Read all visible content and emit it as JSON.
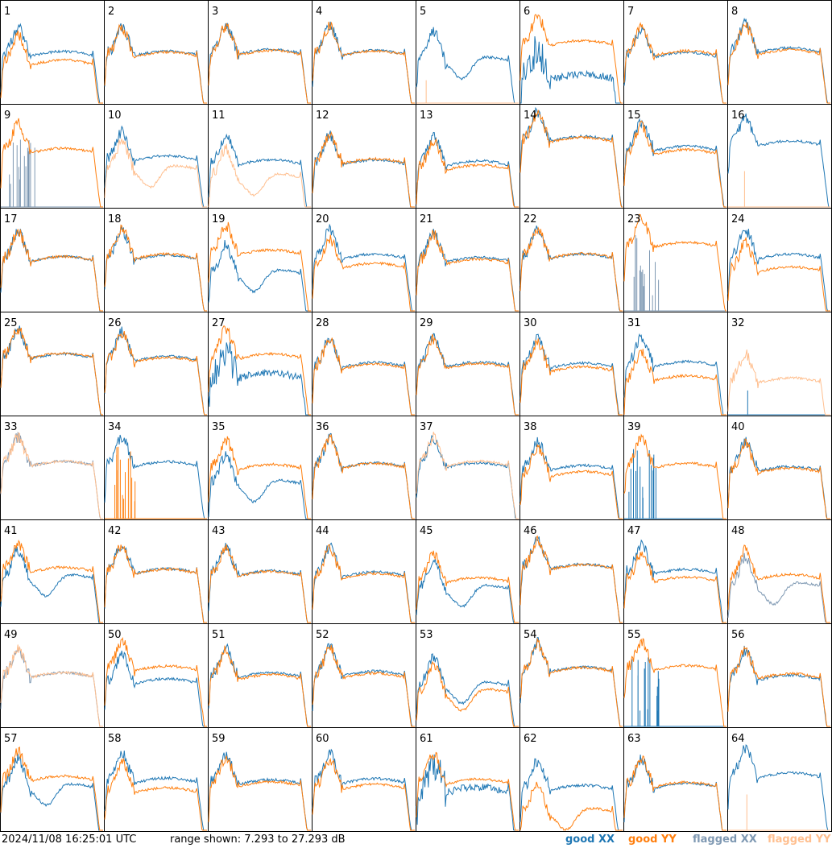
{
  "footer": {
    "timestamp": "2024/11/08 16:25:01 UTC",
    "range_text": "range shown: 7.293 to 27.293 dB"
  },
  "colors": {
    "good_xx": "#1f77b4",
    "good_yy": "#ff7f0e",
    "flagged_xx": "#7f99b3",
    "flagged_yy": "#ffbf8f"
  },
  "chart_data": {
    "type": "line",
    "layout": "8x8 small multiples, one spectrum per tile",
    "ylim": [
      7.293,
      27.293
    ],
    "yunit": "dB",
    "legend": {
      "placement": "bottom-right",
      "entries": [
        {
          "prefix": "good",
          "pol": "XX",
          "color_key": "good_xx"
        },
        {
          "prefix": "good",
          "pol": "YY",
          "color_key": "good_yy"
        },
        {
          "prefix": "flagged",
          "pol": "XX",
          "color_key": "flagged_xx"
        },
        {
          "prefix": "flagged",
          "pol": "YY",
          "color_key": "flagged_yy"
        }
      ]
    },
    "tiles": [
      {
        "label": "1",
        "xx": "good",
        "yy": "good",
        "xx_mid": 16.5,
        "yy_mid": 14.8,
        "xx_shape": "normal",
        "yy_shape": "normal"
      },
      {
        "label": "2",
        "xx": "good",
        "yy": "good",
        "xx_mid": 16.6,
        "yy_mid": 16.4,
        "xx_shape": "normal",
        "yy_shape": "normal"
      },
      {
        "label": "3",
        "xx": "good",
        "yy": "good",
        "xx_mid": 16.9,
        "yy_mid": 16.7,
        "xx_shape": "normal",
        "yy_shape": "normal"
      },
      {
        "label": "4",
        "xx": "good",
        "yy": "good",
        "xx_mid": 16.7,
        "yy_mid": 16.6,
        "xx_shape": "normal",
        "yy_shape": "normal"
      },
      {
        "label": "5",
        "xx": "good",
        "yy": "flagged",
        "xx_mid": 15.5,
        "yy_mid": 7.3,
        "xx_shape": "dip",
        "yy_shape": "flat"
      },
      {
        "label": "6",
        "xx": "good",
        "yy": "good",
        "xx_mid": 12.0,
        "yy_mid": 18.6,
        "xx_shape": "noisy",
        "yy_shape": "normal"
      },
      {
        "label": "7",
        "xx": "good",
        "yy": "good",
        "xx_mid": 16.3,
        "yy_mid": 16.6,
        "xx_shape": "normal",
        "yy_shape": "normal"
      },
      {
        "label": "8",
        "xx": "good",
        "yy": "good",
        "xx_mid": 17.2,
        "yy_mid": 16.8,
        "xx_shape": "normal",
        "yy_shape": "normal"
      },
      {
        "label": "9",
        "xx": "flagged",
        "yy": "good",
        "xx_mid": 7.3,
        "yy_mid": 17.9,
        "xx_shape": "spikes",
        "yy_shape": "normal"
      },
      {
        "label": "10",
        "xx": "good",
        "yy": "flagged",
        "xx_mid": 16.4,
        "yy_mid": 14.6,
        "xx_shape": "normal",
        "yy_shape": "dip"
      },
      {
        "label": "11",
        "xx": "good",
        "yy": "flagged",
        "xx_mid": 15.6,
        "yy_mid": 13.0,
        "xx_shape": "normal",
        "yy_shape": "dip"
      },
      {
        "label": "12",
        "xx": "good",
        "yy": "good",
        "xx_mid": 15.6,
        "yy_mid": 15.8,
        "xx_shape": "normal",
        "yy_shape": "normal"
      },
      {
        "label": "13",
        "xx": "good",
        "yy": "good",
        "xx_mid": 15.4,
        "yy_mid": 14.6,
        "xx_shape": "normal",
        "yy_shape": "normal"
      },
      {
        "label": "14",
        "xx": "good",
        "yy": "good",
        "xx_mid": 20.2,
        "yy_mid": 20.0,
        "xx_shape": "normal",
        "yy_shape": "normal"
      },
      {
        "label": "15",
        "xx": "good",
        "yy": "good",
        "xx_mid": 18.3,
        "yy_mid": 17.6,
        "xx_shape": "normal",
        "yy_shape": "normal"
      },
      {
        "label": "16",
        "xx": "good",
        "yy": "flagged",
        "xx_mid": 19.3,
        "yy_mid": 7.3,
        "xx_shape": "normal",
        "yy_shape": "flat"
      },
      {
        "label": "17",
        "xx": "good",
        "yy": "good",
        "xx_mid": 17.0,
        "yy_mid": 17.0,
        "xx_shape": "normal",
        "yy_shape": "normal"
      },
      {
        "label": "18",
        "xx": "good",
        "yy": "good",
        "xx_mid": 17.3,
        "yy_mid": 17.5,
        "xx_shape": "normal",
        "yy_shape": "normal"
      },
      {
        "label": "19",
        "xx": "good",
        "yy": "good",
        "xx_mid": 14.5,
        "yy_mid": 18.3,
        "xx_shape": "dip",
        "yy_shape": "normal"
      },
      {
        "label": "20",
        "xx": "good",
        "yy": "good",
        "xx_mid": 17.5,
        "yy_mid": 15.7,
        "xx_shape": "normal",
        "yy_shape": "normal"
      },
      {
        "label": "21",
        "xx": "good",
        "yy": "good",
        "xx_mid": 16.9,
        "yy_mid": 16.5,
        "xx_shape": "normal",
        "yy_shape": "normal"
      },
      {
        "label": "22",
        "xx": "good",
        "yy": "good",
        "xx_mid": 17.5,
        "yy_mid": 17.6,
        "xx_shape": "normal",
        "yy_shape": "normal"
      },
      {
        "label": "23",
        "xx": "flagged",
        "yy": "good",
        "xx_mid": 8.5,
        "yy_mid": 19.8,
        "xx_shape": "spikes",
        "yy_shape": "normal"
      },
      {
        "label": "24",
        "xx": "good",
        "yy": "good",
        "xx_mid": 17.5,
        "yy_mid": 15.0,
        "xx_shape": "normal",
        "yy_shape": "normal"
      },
      {
        "label": "25",
        "xx": "good",
        "yy": "good",
        "xx_mid": 18.3,
        "yy_mid": 18.4,
        "xx_shape": "normal",
        "yy_shape": "normal"
      },
      {
        "label": "26",
        "xx": "good",
        "yy": "good",
        "xx_mid": 17.8,
        "yy_mid": 17.6,
        "xx_shape": "normal",
        "yy_shape": "normal"
      },
      {
        "label": "27",
        "xx": "good",
        "yy": "good",
        "xx_mid": 14.5,
        "yy_mid": 18.3,
        "xx_shape": "noisy",
        "yy_shape": "normal"
      },
      {
        "label": "28",
        "xx": "good",
        "yy": "good",
        "xx_mid": 16.6,
        "yy_mid": 16.3,
        "xx_shape": "normal",
        "yy_shape": "normal"
      },
      {
        "label": "29",
        "xx": "good",
        "yy": "good",
        "xx_mid": 16.7,
        "yy_mid": 16.4,
        "xx_shape": "normal",
        "yy_shape": "normal"
      },
      {
        "label": "30",
        "xx": "good",
        "yy": "good",
        "xx_mid": 16.5,
        "yy_mid": 15.8,
        "xx_shape": "normal",
        "yy_shape": "normal"
      },
      {
        "label": "31",
        "xx": "good",
        "yy": "good",
        "xx_mid": 16.8,
        "yy_mid": 14.0,
        "xx_shape": "normal",
        "yy_shape": "normal"
      },
      {
        "label": "32",
        "xx": "good",
        "yy": "flagged",
        "xx_mid": 7.3,
        "yy_mid": 13.6,
        "xx_shape": "flat",
        "yy_shape": "normal"
      },
      {
        "label": "33",
        "xx": "flagged",
        "yy": "flagged",
        "xx_mid": 17.6,
        "yy_mid": 17.6,
        "xx_shape": "normal",
        "yy_shape": "normal"
      },
      {
        "label": "34",
        "xx": "good",
        "yy": "good",
        "xx_mid": 17.5,
        "yy_mid": 7.3,
        "xx_shape": "normal",
        "yy_shape": "spikes"
      },
      {
        "label": "35",
        "xx": "good",
        "yy": "good",
        "xx_mid": 14.0,
        "yy_mid": 17.0,
        "xx_shape": "dip",
        "yy_shape": "normal"
      },
      {
        "label": "36",
        "xx": "good",
        "yy": "good",
        "xx_mid": 17.3,
        "yy_mid": 17.2,
        "xx_shape": "normal",
        "yy_shape": "normal"
      },
      {
        "label": "37",
        "xx": "good",
        "yy": "flagged",
        "xx_mid": 17.3,
        "yy_mid": 17.6,
        "xx_shape": "normal",
        "yy_shape": "normal"
      },
      {
        "label": "38",
        "xx": "good",
        "yy": "good",
        "xx_mid": 16.8,
        "yy_mid": 15.6,
        "xx_shape": "normal",
        "yy_shape": "normal"
      },
      {
        "label": "39",
        "xx": "good",
        "yy": "good",
        "xx_mid": 7.3,
        "yy_mid": 17.2,
        "xx_shape": "spikes",
        "yy_shape": "normal"
      },
      {
        "label": "40",
        "xx": "good",
        "yy": "good",
        "xx_mid": 16.6,
        "yy_mid": 16.3,
        "xx_shape": "normal",
        "yy_shape": "normal"
      },
      {
        "label": "41",
        "xx": "good",
        "yy": "good",
        "xx_mid": 15.8,
        "yy_mid": 17.2,
        "xx_shape": "dip",
        "yy_shape": "normal"
      },
      {
        "label": "42",
        "xx": "good",
        "yy": "good",
        "xx_mid": 16.9,
        "yy_mid": 16.8,
        "xx_shape": "normal",
        "yy_shape": "normal"
      },
      {
        "label": "43",
        "xx": "good",
        "yy": "good",
        "xx_mid": 16.5,
        "yy_mid": 16.4,
        "xx_shape": "normal",
        "yy_shape": "normal"
      },
      {
        "label": "44",
        "xx": "good",
        "yy": "good",
        "xx_mid": 16.3,
        "yy_mid": 16.0,
        "xx_shape": "normal",
        "yy_shape": "normal"
      },
      {
        "label": "45",
        "xx": "good",
        "yy": "good",
        "xx_mid": 13.8,
        "yy_mid": 15.2,
        "xx_shape": "dip",
        "yy_shape": "normal"
      },
      {
        "label": "46",
        "xx": "good",
        "yy": "good",
        "xx_mid": 17.8,
        "yy_mid": 17.7,
        "xx_shape": "normal",
        "yy_shape": "normal"
      },
      {
        "label": "47",
        "xx": "good",
        "yy": "good",
        "xx_mid": 16.8,
        "yy_mid": 15.3,
        "xx_shape": "normal",
        "yy_shape": "normal"
      },
      {
        "label": "48",
        "xx": "flagged",
        "yy": "good",
        "xx_mid": 14.3,
        "yy_mid": 15.8,
        "xx_shape": "dip",
        "yy_shape": "normal"
      },
      {
        "label": "49",
        "xx": "flagged",
        "yy": "flagged",
        "xx_mid": 16.9,
        "yy_mid": 16.9,
        "xx_shape": "normal",
        "yy_shape": "normal"
      },
      {
        "label": "50",
        "xx": "good",
        "yy": "good",
        "xx_mid": 15.7,
        "yy_mid": 18.2,
        "xx_shape": "normal",
        "yy_shape": "normal"
      },
      {
        "label": "51",
        "xx": "good",
        "yy": "good",
        "xx_mid": 16.9,
        "yy_mid": 16.5,
        "xx_shape": "normal",
        "yy_shape": "normal"
      },
      {
        "label": "52",
        "xx": "good",
        "yy": "good",
        "xx_mid": 17.2,
        "yy_mid": 16.8,
        "xx_shape": "normal",
        "yy_shape": "normal"
      },
      {
        "label": "53",
        "xx": "good",
        "yy": "good",
        "xx_mid": 15.2,
        "yy_mid": 13.8,
        "xx_shape": "dip",
        "yy_shape": "dip"
      },
      {
        "label": "54",
        "xx": "good",
        "yy": "good",
        "xx_mid": 18.0,
        "yy_mid": 17.9,
        "xx_shape": "normal",
        "yy_shape": "normal"
      },
      {
        "label": "55",
        "xx": "good",
        "yy": "good",
        "xx_mid": 7.3,
        "yy_mid": 18.3,
        "xx_shape": "spikes",
        "yy_shape": "normal"
      },
      {
        "label": "56",
        "xx": "good",
        "yy": "good",
        "xx_mid": 16.4,
        "yy_mid": 16.7,
        "xx_shape": "normal",
        "yy_shape": "normal"
      },
      {
        "label": "57",
        "xx": "good",
        "yy": "good",
        "xx_mid": 15.6,
        "yy_mid": 17.0,
        "xx_shape": "dip",
        "yy_shape": "normal"
      },
      {
        "label": "58",
        "xx": "good",
        "yy": "good",
        "xx_mid": 16.6,
        "yy_mid": 14.7,
        "xx_shape": "normal",
        "yy_shape": "normal"
      },
      {
        "label": "59",
        "xx": "good",
        "yy": "good",
        "xx_mid": 16.3,
        "yy_mid": 15.9,
        "xx_shape": "normal",
        "yy_shape": "normal"
      },
      {
        "label": "60",
        "xx": "good",
        "yy": "good",
        "xx_mid": 16.5,
        "yy_mid": 15.4,
        "xx_shape": "normal",
        "yy_shape": "normal"
      },
      {
        "label": "61",
        "xx": "good",
        "yy": "good",
        "xx_mid": 14.8,
        "yy_mid": 16.4,
        "xx_shape": "noisy",
        "yy_shape": "normal"
      },
      {
        "label": "62",
        "xx": "good",
        "yy": "good",
        "xx_mid": 15.2,
        "yy_mid": 10.8,
        "xx_shape": "normal",
        "yy_shape": "dip"
      },
      {
        "label": "63",
        "xx": "good",
        "yy": "good",
        "xx_mid": 15.6,
        "yy_mid": 15.8,
        "xx_shape": "normal",
        "yy_shape": "normal"
      },
      {
        "label": "64",
        "xx": "good",
        "yy": "flagged",
        "xx_mid": 17.6,
        "yy_mid": 7.3,
        "xx_shape": "normal",
        "yy_shape": "flat"
      }
    ]
  }
}
